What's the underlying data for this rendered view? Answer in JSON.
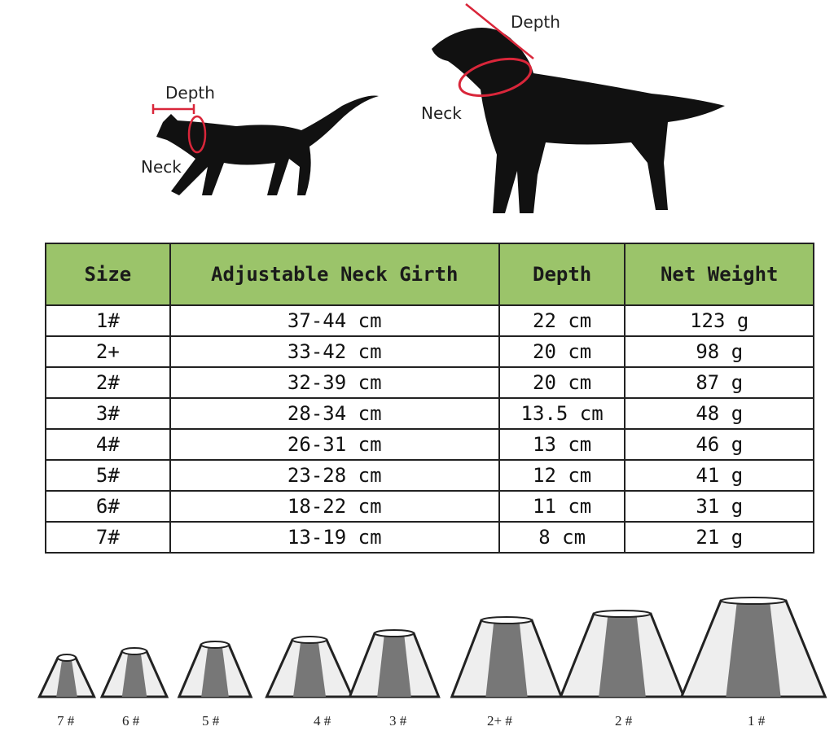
{
  "diagram": {
    "cat_depth": "Depth",
    "cat_neck": "Neck",
    "dog_depth": "Depth",
    "dog_neck": "Neck",
    "accent": "#d9263a"
  },
  "table": {
    "headers": [
      "Size",
      "Adjustable Neck Girth",
      "Depth",
      "Net Weight"
    ],
    "rows": [
      [
        "1#",
        "37-44 cm",
        "22 cm",
        "123 g"
      ],
      [
        "2+",
        "33-42 cm",
        "20 cm",
        "98 g"
      ],
      [
        "2#",
        "32-39 cm",
        "20 cm",
        "87 g"
      ],
      [
        "3#",
        "28-34 cm",
        "13.5 cm",
        "48 g"
      ],
      [
        "4#",
        "26-31 cm",
        "13 cm",
        "46 g"
      ],
      [
        "5#",
        "23-28 cm",
        "12 cm",
        "41 g"
      ],
      [
        "6#",
        "18-22 cm",
        "11 cm",
        "31 g"
      ],
      [
        "7#",
        "13-19 cm",
        "8 cm",
        "21 g"
      ]
    ],
    "header_color": "#9bc46a"
  },
  "cones": [
    "7 #",
    "6 #",
    "5 #",
    "4 #",
    "3 #",
    "2+ #",
    "2 #",
    "1 #"
  ]
}
